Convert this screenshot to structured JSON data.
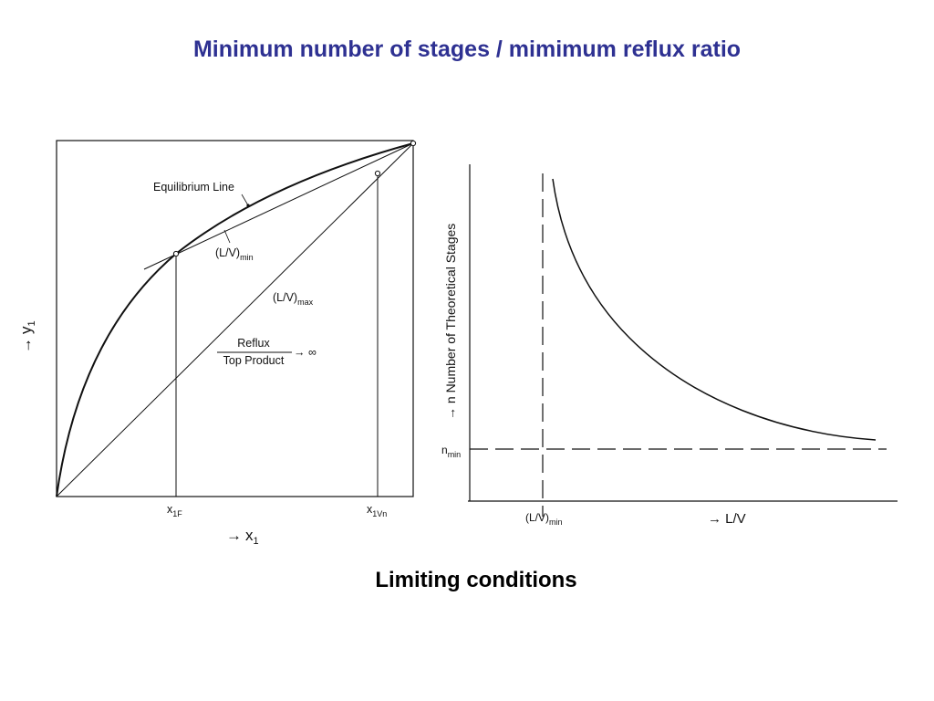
{
  "title": "Minimum number of stages / mimimum reflux ratio",
  "caption": "Limiting conditions",
  "colors": {
    "title": "#2e3192",
    "ink": "#111111"
  },
  "left_diagram": {
    "equilibrium_label": "Equilibrium Line",
    "lv_min": {
      "base": "(L/V)",
      "sub": "min"
    },
    "lv_max": {
      "base": "(L/V)",
      "sub": "max"
    },
    "reflux_numerator": "Reflux",
    "reflux_denominator": "Top Product",
    "reflux_limit": "→ ∞",
    "y_axis": {
      "arrow": "→",
      "base": "y",
      "sub": "1"
    },
    "x_axis": {
      "arrow": "→",
      "base": "x",
      "sub": "1"
    },
    "x1f": {
      "base": "x",
      "sub": "1F"
    },
    "x1vn": {
      "base": "x",
      "sub": "1Vn"
    }
  },
  "right_diagram": {
    "y_axis_label": "→ n Number of Theoretical Stages",
    "nmin": {
      "base": "n",
      "sub": "min"
    },
    "lv_min": {
      "base": "(L/V)",
      "sub": "min"
    },
    "x_axis_label": "→ L/V"
  }
}
